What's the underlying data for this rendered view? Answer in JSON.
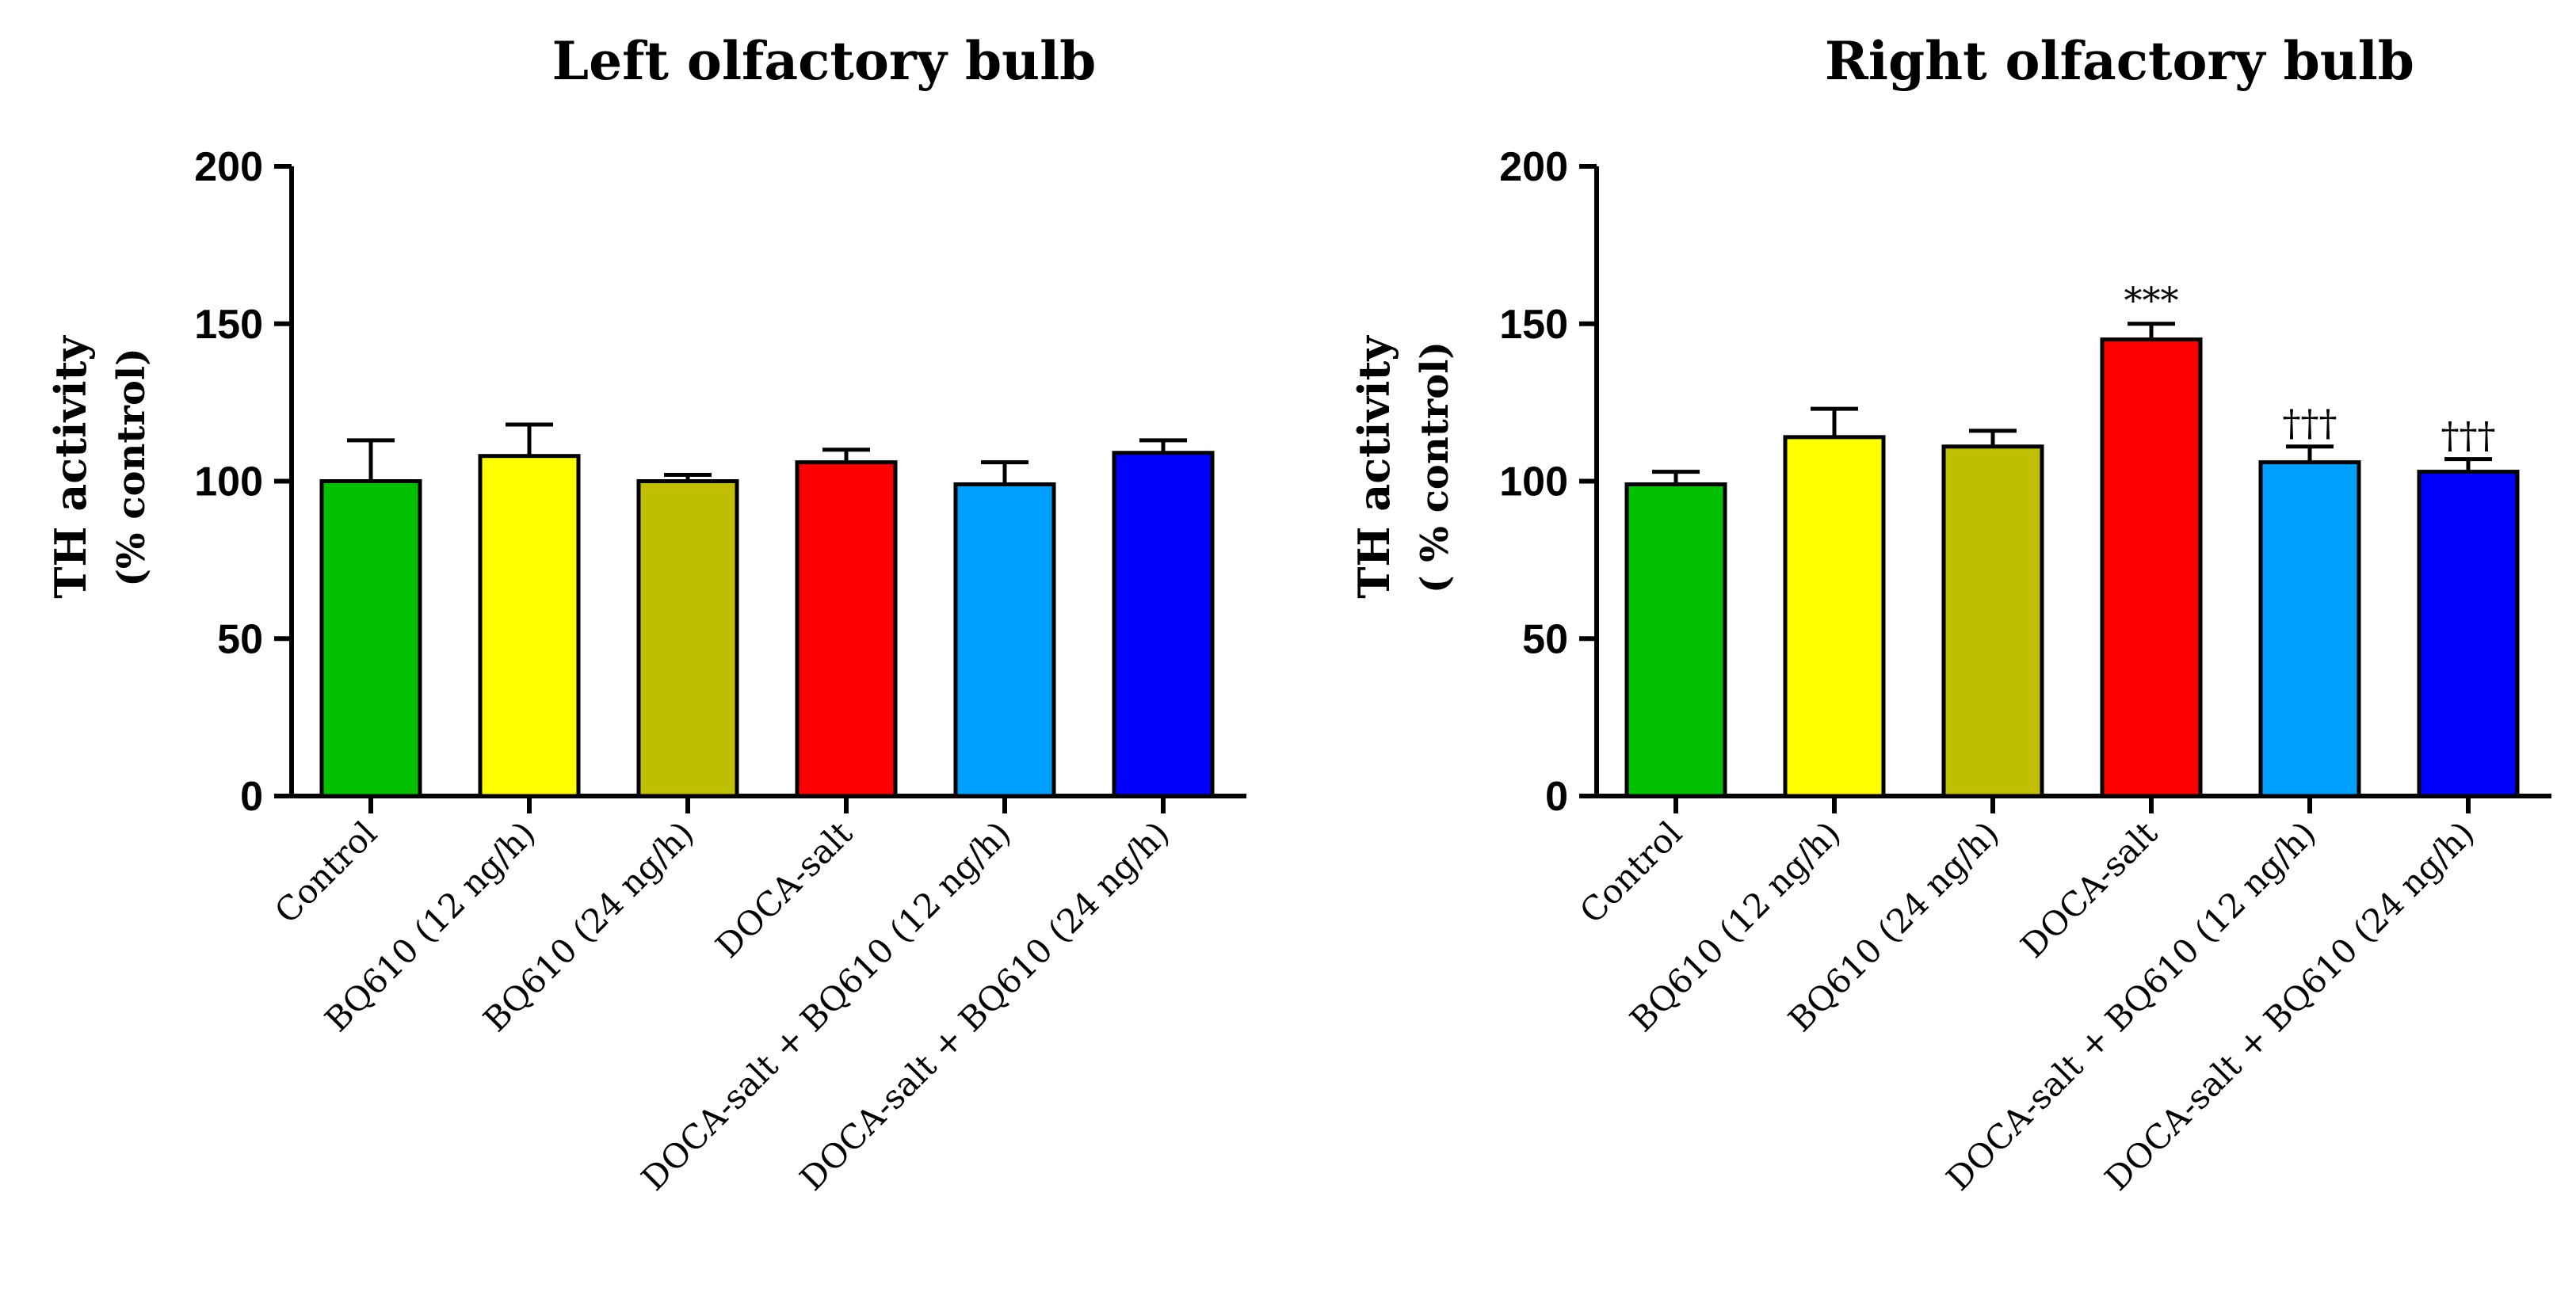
{
  "figure": {
    "panels": [
      {
        "id": "left",
        "title": "Left olfactory bulb",
        "ylabel_main": "TH activity",
        "ylabel_sub": "(% control)"
      },
      {
        "id": "right",
        "title": "Right olfactory bulb",
        "ylabel_main": "TH activity",
        "ylabel_sub": "( % control)"
      }
    ]
  },
  "chart_data": [
    {
      "type": "bar",
      "title": "Left olfactory bulb",
      "ylabel": "TH activity (% control)",
      "xlabel": "",
      "ylim": [
        0,
        200
      ],
      "yticks": [
        0,
        50,
        100,
        150,
        200
      ],
      "categories": [
        "Control",
        "BQ610 (12 ng/h)",
        "BQ610 (24 ng/h)",
        "DOCA-salt",
        "DOCA-salt + BQ610 (12 ng/h)",
        "DOCA-salt + BQ610 (24 ng/h)"
      ],
      "values": [
        100,
        108,
        100,
        106,
        99,
        109
      ],
      "errors": [
        13,
        10,
        2,
        4,
        7,
        4
      ],
      "colors": [
        "#00c000",
        "#ffff00",
        "#bfbf00",
        "#ff0000",
        "#00a0ff",
        "#0000ff"
      ],
      "annotations": [
        "",
        "",
        "",
        "",
        "",
        ""
      ]
    },
    {
      "type": "bar",
      "title": "Right olfactory bulb",
      "ylabel": "TH activity ( % control)",
      "xlabel": "",
      "ylim": [
        0,
        200
      ],
      "yticks": [
        0,
        50,
        100,
        150,
        200
      ],
      "categories": [
        "Control",
        "BQ610 (12 ng/h)",
        "BQ610 (24 ng/h)",
        "DOCA-salt",
        "DOCA-salt + BQ610 (12 ng/h)",
        "DOCA-salt + BQ610 (24 ng/h)"
      ],
      "values": [
        99,
        114,
        111,
        145,
        106,
        103
      ],
      "errors": [
        4,
        9,
        5,
        5,
        5,
        4
      ],
      "colors": [
        "#00c000",
        "#ffff00",
        "#bfbf00",
        "#ff0000",
        "#00a0ff",
        "#0000ff"
      ],
      "annotations": [
        "",
        "",
        "",
        "***",
        "†††",
        "†††"
      ]
    }
  ]
}
